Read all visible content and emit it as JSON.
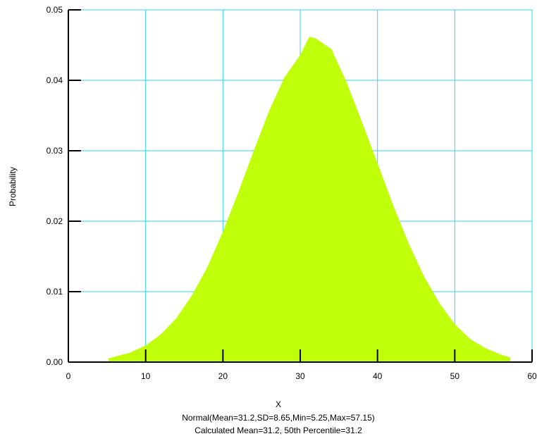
{
  "chart_data": {
    "type": "area",
    "title": "",
    "xlabel": "X",
    "ylabel": "Probability",
    "xlim": [
      0,
      60
    ],
    "ylim": [
      0,
      0.05
    ],
    "x_ticks": [
      "0",
      "10",
      "20",
      "30",
      "40",
      "50",
      "60"
    ],
    "y_ticks": [
      "0.00",
      "0.01",
      "0.02",
      "0.03",
      "0.04",
      "0.05"
    ],
    "grid": true,
    "distribution": {
      "name": "Normal",
      "mean": 31.2,
      "sd": 8.65,
      "min": 5.25,
      "max": 57.15
    },
    "series": [
      {
        "x": [
          5.25,
          8,
          10,
          12,
          14,
          16,
          18,
          20,
          22,
          24,
          26,
          28,
          30,
          31.2,
          32,
          34,
          36,
          38,
          40,
          42,
          44,
          46,
          48,
          50,
          52,
          54,
          56,
          57.15
        ],
        "values": [
          0.0005,
          0.0013,
          0.0023,
          0.0039,
          0.0062,
          0.0094,
          0.0134,
          0.0184,
          0.024,
          0.0299,
          0.0356,
          0.0404,
          0.0435,
          0.0461,
          0.0459,
          0.0444,
          0.0396,
          0.0339,
          0.0281,
          0.0222,
          0.0168,
          0.0121,
          0.0083,
          0.0053,
          0.0032,
          0.0019,
          0.001,
          0.0006
        ]
      }
    ],
    "fill_color": "#bfff0a",
    "grid_color": "#33d6e8",
    "axis_color": "#000000",
    "captions": [
      "Normal(Mean=31.2,SD=8.65,Min=5.25,Max=57.15)",
      "Calculated Mean=31.2, 50th Percentile=31.2"
    ]
  }
}
